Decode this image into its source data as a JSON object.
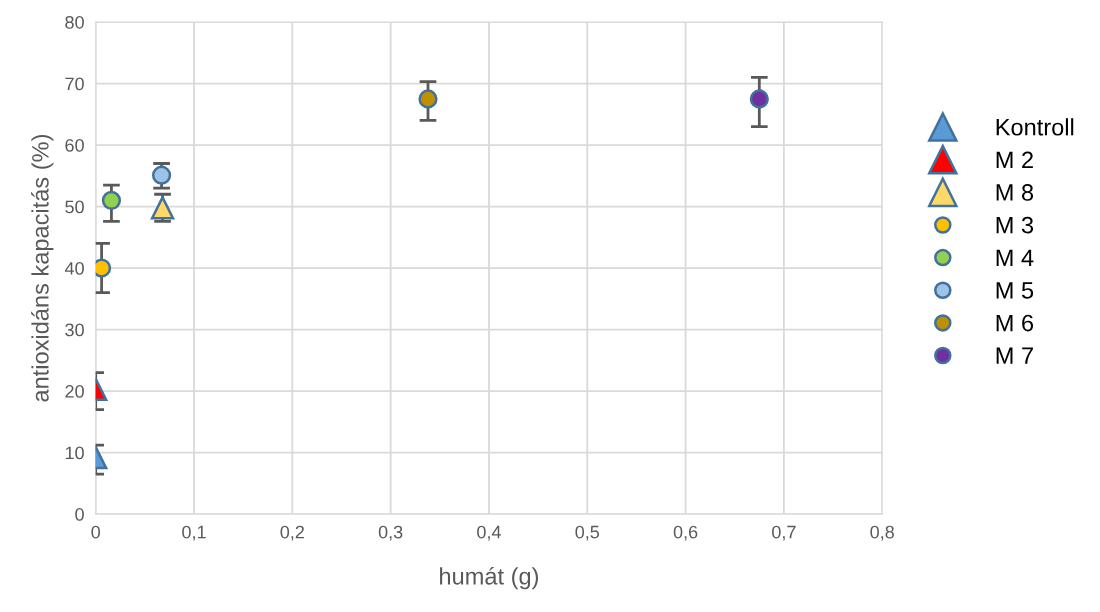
{
  "chart_data": {
    "type": "scatter",
    "xlabel": "humát (g)",
    "ylabel": "antioxidáns kapacitás (%)",
    "xlim": [
      0,
      0.8
    ],
    "ylim": [
      0,
      80
    ],
    "xticks": [
      0,
      {
        "value": 0.1,
        "label": "0,1"
      },
      {
        "value": 0.2,
        "label": "0,2"
      },
      {
        "value": 0.3,
        "label": "0,3"
      },
      {
        "value": 0.4,
        "label": "0,4"
      },
      {
        "value": 0.5,
        "label": "0,5"
      },
      {
        "value": 0.6,
        "label": "0,6"
      },
      {
        "value": 0.7,
        "label": "0,7"
      },
      {
        "value": 0.8,
        "label": "0,8"
      }
    ],
    "yticks": [
      0,
      10,
      20,
      30,
      40,
      50,
      60,
      70,
      80
    ],
    "grid": true,
    "legend": "right",
    "series": [
      {
        "name": "Kontroll",
        "color": "#5b9bd5",
        "marker": "triangle",
        "x": [
          0
        ],
        "values": [
          9.2
        ],
        "errors": [
          [
            6.5,
            11.2
          ]
        ]
      },
      {
        "name": "M 2",
        "color": "#ff0000",
        "marker": "triangle",
        "x": [
          0
        ],
        "values": [
          20.3
        ],
        "errors": [
          [
            17,
            23
          ]
        ]
      },
      {
        "name": "M 8",
        "color": "#ffd966",
        "marker": "triangle",
        "x": [
          0.068
        ],
        "values": [
          49.8
        ],
        "errors": [
          [
            47.6,
            52
          ]
        ]
      },
      {
        "name": "M 3",
        "color": "#ffc000",
        "marker": "circle",
        "x": [
          0.006
        ],
        "values": [
          40
        ],
        "errors": [
          [
            36,
            44
          ]
        ]
      },
      {
        "name": "M 4",
        "color": "#92d050",
        "marker": "circle",
        "x": [
          0.016
        ],
        "values": [
          51
        ],
        "errors": [
          [
            47.6,
            53.5
          ]
        ]
      },
      {
        "name": "M 5",
        "color": "#9dc3e6",
        "marker": "circle",
        "x": [
          0.067
        ],
        "values": [
          55.1
        ],
        "errors": [
          [
            53,
            57
          ]
        ]
      },
      {
        "name": "M 6",
        "color": "#bf9000",
        "marker": "circle",
        "x": [
          0.338
        ],
        "values": [
          67.5
        ],
        "errors": [
          [
            64,
            70.3
          ]
        ]
      },
      {
        "name": "M 7",
        "color": "#7030a0",
        "marker": "circle",
        "x": [
          0.675
        ],
        "values": [
          67.5
        ],
        "errors": [
          [
            63,
            71
          ]
        ]
      }
    ]
  }
}
